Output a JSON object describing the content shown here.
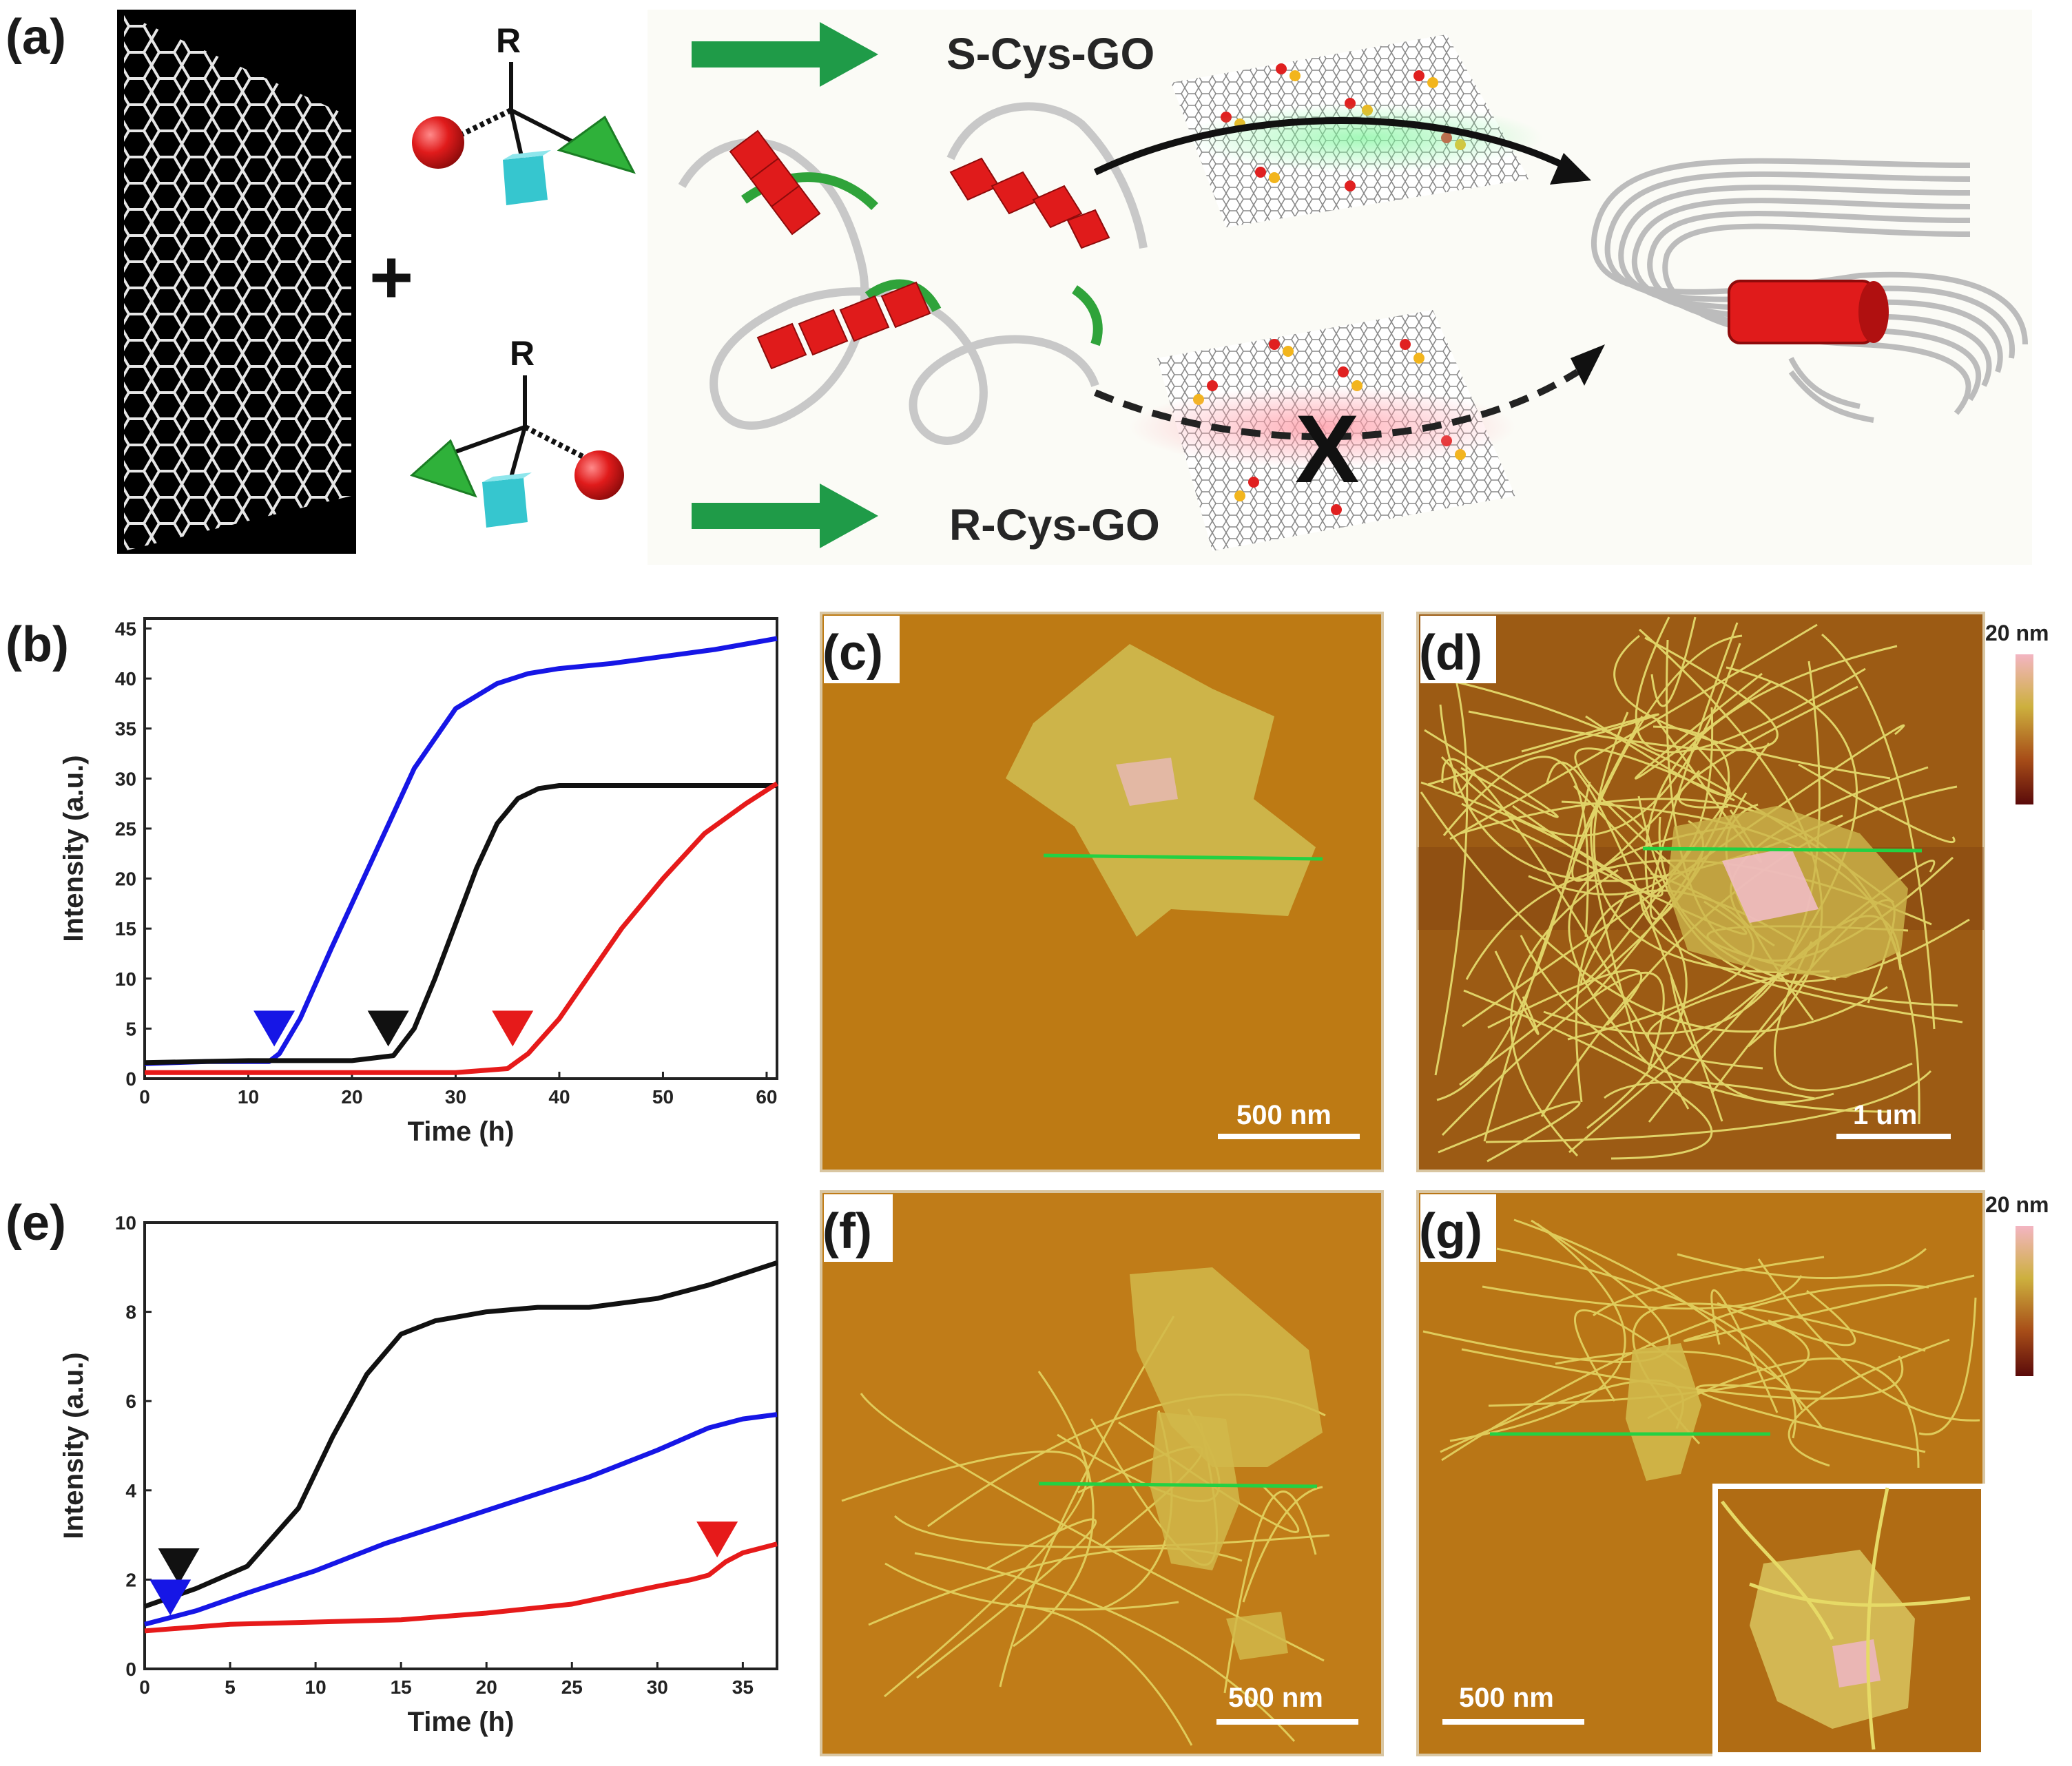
{
  "panel_labels": {
    "a": "(a)",
    "b": "(b)",
    "c": "(c)",
    "d": "(d)",
    "e": "(e)",
    "f": "(f)",
    "g": "(g)"
  },
  "scheme": {
    "substituent_label": "R",
    "plus_sign": "+",
    "s_label": "S-Cys-GO",
    "r_label": "R-Cys-GO",
    "blocked_mark": "X",
    "colors": {
      "arrow": "#1f9b48",
      "helix": "#e01b1b",
      "sphere": "#e01b1b",
      "cube": "#36c6cf",
      "tetra": "#2fb13a"
    }
  },
  "afm": {
    "c_scale": "500 nm",
    "d_scale": "1 um",
    "f_scale": "500 nm",
    "g_scale": "500 nm",
    "colorbar_top_1": "20 nm",
    "colorbar_top_2": "20 nm",
    "colors": {
      "substrate": "#bd7a14",
      "sheet": "#d1b94a",
      "fibril": "#e8e070",
      "line": "#23d143"
    }
  },
  "chart_data": [
    {
      "type": "line",
      "panel": "b",
      "xlabel": "Time (h)",
      "ylabel": "Intensity (a.u.)",
      "xlim": [
        0,
        61
      ],
      "ylim": [
        0,
        46
      ],
      "xticks": [
        0,
        10,
        20,
        30,
        40,
        50,
        60
      ],
      "yticks": [
        0,
        5,
        10,
        15,
        20,
        25,
        30,
        35,
        40,
        45
      ],
      "series": [
        {
          "color": "#1616e6",
          "x": [
            0,
            6,
            12,
            13,
            15,
            18,
            22,
            26,
            30,
            34,
            37,
            40,
            45,
            50,
            55,
            61
          ],
          "y": [
            1.5,
            1.7,
            1.7,
            2.5,
            6,
            13,
            22,
            31,
            37,
            39.5,
            40.5,
            41,
            41.5,
            42.2,
            42.9,
            44
          ]
        },
        {
          "color": "#111111",
          "x": [
            0,
            10,
            20,
            24,
            26,
            28,
            30,
            32,
            34,
            36,
            38,
            40,
            45,
            50,
            55,
            61
          ],
          "y": [
            1.6,
            1.8,
            1.8,
            2.3,
            5,
            10,
            15.5,
            21,
            25.5,
            28,
            29,
            29.3,
            29.3,
            29.3,
            29.3,
            29.3
          ]
        },
        {
          "color": "#e61a1a",
          "x": [
            0,
            10,
            20,
            30,
            35,
            37,
            40,
            43,
            46,
            50,
            54,
            58,
            61
          ],
          "y": [
            0.6,
            0.6,
            0.6,
            0.6,
            1.0,
            2.5,
            6,
            10.5,
            15,
            20,
            24.5,
            27.5,
            29.5
          ]
        }
      ],
      "markers": [
        {
          "color": "#1616e6",
          "x": 12.5,
          "y": 5
        },
        {
          "color": "#111111",
          "x": 23.5,
          "y": 5
        },
        {
          "color": "#e61a1a",
          "x": 35.5,
          "y": 5
        }
      ]
    },
    {
      "type": "line",
      "panel": "e",
      "xlabel": "Time (h)",
      "ylabel": "Intensity (a.u.)",
      "xlim": [
        0,
        37
      ],
      "ylim": [
        0,
        10
      ],
      "xticks": [
        0,
        5,
        10,
        15,
        20,
        25,
        30,
        35
      ],
      "yticks": [
        0,
        2,
        4,
        6,
        8,
        10
      ],
      "series": [
        {
          "color": "#111111",
          "x": [
            0,
            3,
            6,
            9,
            11,
            13,
            15,
            17,
            20,
            23,
            26,
            30,
            33,
            37
          ],
          "y": [
            1.4,
            1.8,
            2.3,
            3.6,
            5.2,
            6.6,
            7.5,
            7.8,
            8.0,
            8.1,
            8.1,
            8.3,
            8.6,
            9.1
          ]
        },
        {
          "color": "#1616e6",
          "x": [
            0,
            3,
            6,
            10,
            14,
            18,
            22,
            26,
            30,
            33,
            35,
            37
          ],
          "y": [
            1.0,
            1.3,
            1.7,
            2.2,
            2.8,
            3.3,
            3.8,
            4.3,
            4.9,
            5.4,
            5.6,
            5.7
          ]
        },
        {
          "color": "#e61a1a",
          "x": [
            0,
            5,
            10,
            15,
            20,
            25,
            30,
            32,
            33,
            34,
            35,
            37
          ],
          "y": [
            0.85,
            1.0,
            1.05,
            1.1,
            1.25,
            1.45,
            1.85,
            2.0,
            2.1,
            2.4,
            2.6,
            2.8
          ]
        }
      ],
      "markers": [
        {
          "color": "#111111",
          "x": 2.0,
          "y": 2.3
        },
        {
          "color": "#1616e6",
          "x": 1.5,
          "y": 1.6
        },
        {
          "color": "#e61a1a",
          "x": 33.5,
          "y": 2.9
        }
      ]
    }
  ]
}
